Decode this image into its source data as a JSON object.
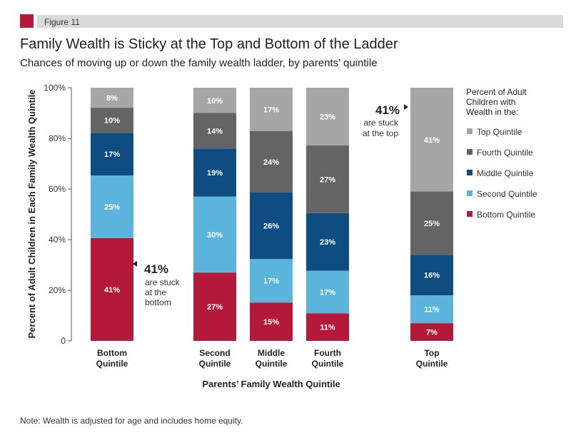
{
  "figure_label": "Figure 11",
  "colors": {
    "accent": "#b5193a",
    "header_bar": "#d9d9d9"
  },
  "note": "Note: Wealth is adjusted for age and includes home equity.",
  "chart_data": {
    "type": "bar",
    "stacked": true,
    "title": "Family Wealth is Sticky at the Top and Bottom of the Ladder",
    "subtitle": "Chances of moving up or down the family wealth ladder, by parents’ quintile",
    "xlabel": "Parents’ Family Wealth Quintile",
    "ylabel": "Percent of Adult Children in Each Family Wealth Quintile",
    "ylim": [
      0,
      100
    ],
    "yticks": [
      "0",
      "20%",
      "40%",
      "60%",
      "80%",
      "100%"
    ],
    "ytick_values": [
      0,
      20,
      40,
      60,
      80,
      100
    ],
    "grid": false,
    "categories": [
      [
        "Bottom",
        "Quintile"
      ],
      [
        "Second",
        "Quintile"
      ],
      [
        "Middle",
        "Quintile"
      ],
      [
        "Fourth",
        "Quintile"
      ],
      [
        "Top",
        "Quintile"
      ]
    ],
    "legend": {
      "title": [
        "Percent of Adult",
        "Children with",
        "Wealth in the:"
      ],
      "placement": "right"
    },
    "series": [
      {
        "name": "Bottom Quintile",
        "color": "#b5193a",
        "values": [
          41,
          27,
          15,
          11,
          7
        ]
      },
      {
        "name": "Second Quintile",
        "color": "#5ab4dc",
        "values": [
          25,
          30,
          17,
          17,
          11
        ]
      },
      {
        "name": "Middle Quintile",
        "color": "#0f4c81",
        "values": [
          17,
          19,
          26,
          23,
          16
        ]
      },
      {
        "name": "Fourth Quintile",
        "color": "#646464",
        "values": [
          10,
          14,
          24,
          27,
          25
        ]
      },
      {
        "name": "Top Quintile",
        "color": "#a6a6a6",
        "values": [
          8,
          10,
          17,
          23,
          41
        ]
      }
    ],
    "annotations": [
      {
        "value": "41%",
        "text": [
          "are stuck",
          "at the",
          "bottom"
        ]
      },
      {
        "value": "41%",
        "text": [
          "are stuck",
          "at the top"
        ]
      }
    ]
  }
}
